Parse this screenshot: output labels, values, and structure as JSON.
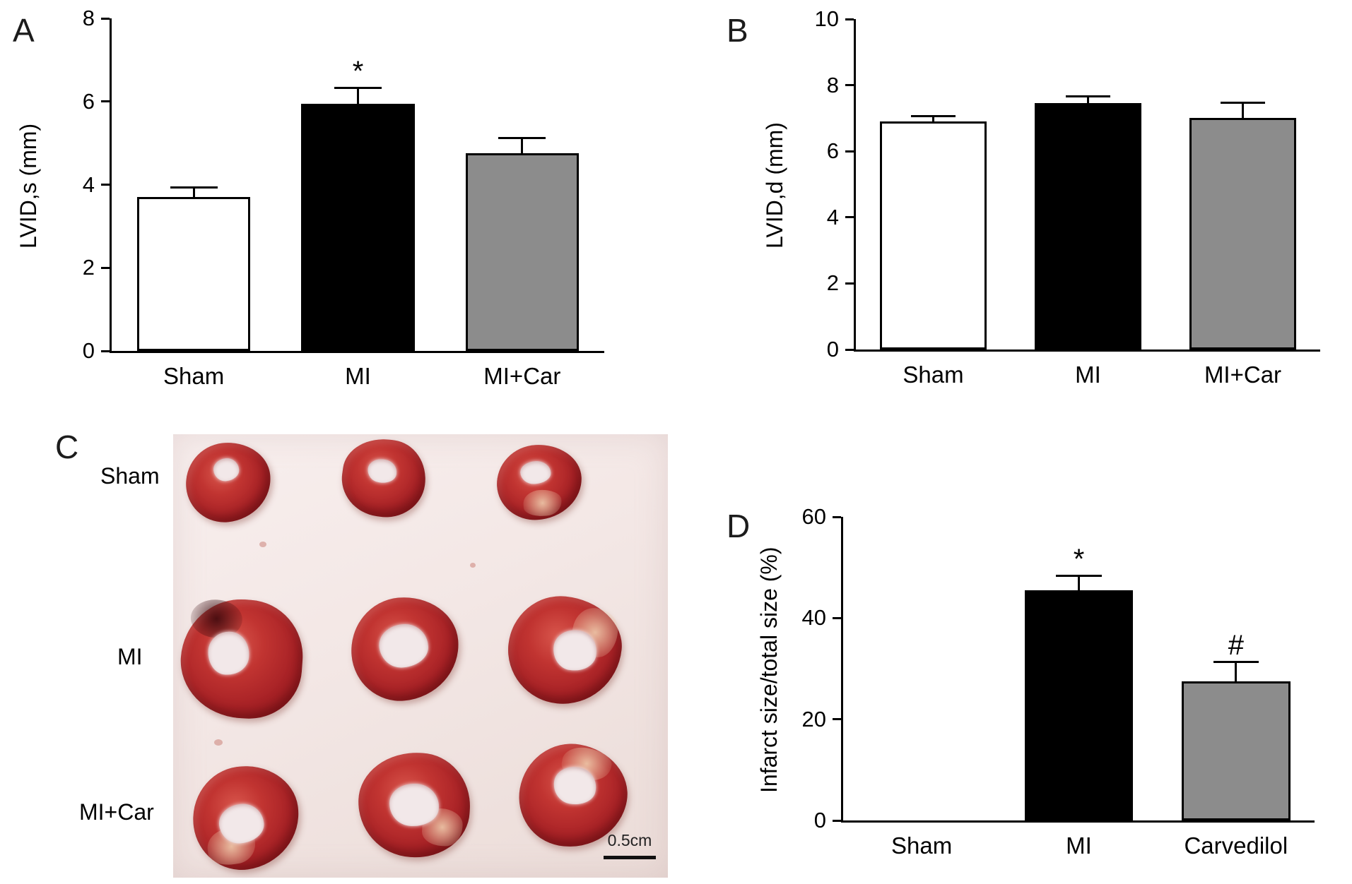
{
  "figure": {
    "background": "#ffffff"
  },
  "chart_data": [
    {
      "type": "bar",
      "panel": "A",
      "ylabel": "LVID,s (mm)",
      "xlabel": "",
      "ylim": [
        0,
        8
      ],
      "yticks": [
        0,
        2,
        4,
        6,
        8
      ],
      "grid": false,
      "legend": "none",
      "categories": [
        "Sham",
        "MI",
        "MI+Car"
      ],
      "values": [
        3.7,
        5.95,
        4.75
      ],
      "errors": [
        0.25,
        0.4,
        0.4
      ],
      "annotations": [
        "",
        "*",
        ""
      ],
      "bar_colors": [
        "#ffffff",
        "#000000",
        "#8c8c8c"
      ]
    },
    {
      "type": "bar",
      "panel": "B",
      "ylabel": "LVID,d (mm)",
      "xlabel": "",
      "ylim": [
        0,
        10
      ],
      "yticks": [
        0,
        2,
        4,
        6,
        8,
        10
      ],
      "grid": false,
      "legend": "none",
      "categories": [
        "Sham",
        "MI",
        "MI+Car"
      ],
      "values": [
        6.9,
        7.45,
        7.0
      ],
      "errors": [
        0.2,
        0.25,
        0.5
      ],
      "annotations": [
        "",
        "",
        ""
      ],
      "bar_colors": [
        "#ffffff",
        "#000000",
        "#8c8c8c"
      ]
    },
    {
      "type": "bar",
      "panel": "D",
      "ylabel": "Infarct size/total size (%)",
      "xlabel": "",
      "ylim": [
        0,
        60
      ],
      "yticks": [
        0,
        20,
        40,
        60
      ],
      "grid": false,
      "legend": "none",
      "categories": [
        "Sham",
        "MI",
        "Carvedilol"
      ],
      "values": [
        0,
        45.5,
        27.5
      ],
      "errors": [
        0,
        3,
        4
      ],
      "annotations": [
        "",
        "*",
        "#"
      ],
      "bar_colors": [
        "#ffffff",
        "#000000",
        "#8c8c8c"
      ]
    }
  ],
  "panel_c": {
    "panel": "C",
    "rows": [
      {
        "label": "Sham"
      },
      {
        "label": "MI"
      },
      {
        "label": "MI+Car"
      }
    ],
    "scale_label": "0.5cm",
    "tissue_color": "#b02a28",
    "photo_background": "#f3e7e5"
  }
}
